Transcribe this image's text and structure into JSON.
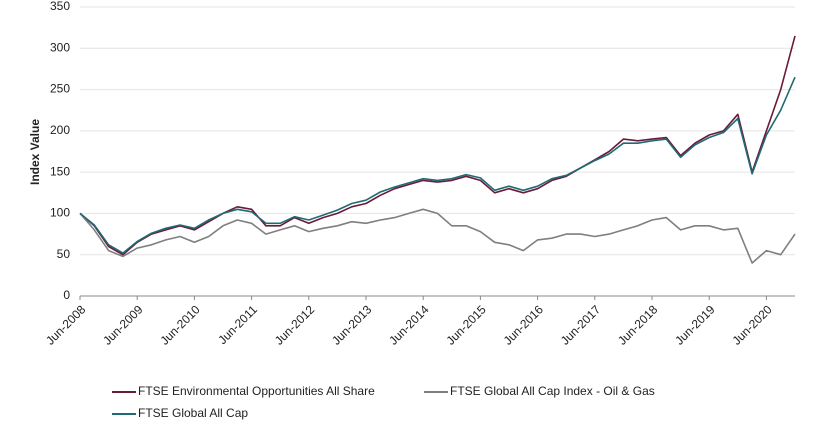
{
  "chart_data": {
    "type": "line",
    "y_label": "Index Value",
    "categories": [
      "Jun-2008",
      null,
      null,
      null,
      "Jun-2009",
      null,
      null,
      null,
      "Jun-2010",
      null,
      null,
      null,
      "Jun-2011",
      null,
      null,
      null,
      "Jun-2012",
      null,
      null,
      null,
      "Jun-2013",
      null,
      null,
      null,
      "Jun-2014",
      null,
      null,
      null,
      "Jun-2015",
      null,
      null,
      null,
      "Jun-2016",
      null,
      null,
      null,
      "Jun-2017",
      null,
      null,
      null,
      "Jun-2018",
      null,
      null,
      null,
      "Jun-2019",
      null,
      null,
      null,
      "Jun-2020",
      null,
      null
    ],
    "series": [
      {
        "name": "FTSE Environmental Opportunities All Share",
        "color": "#6b1a3a",
        "values": [
          100,
          85,
          60,
          50,
          65,
          75,
          80,
          85,
          80,
          90,
          100,
          108,
          105,
          85,
          85,
          95,
          88,
          95,
          100,
          108,
          112,
          122,
          130,
          135,
          140,
          138,
          140,
          145,
          140,
          125,
          130,
          125,
          130,
          140,
          145,
          155,
          165,
          175,
          190,
          188,
          190,
          192,
          170,
          185,
          195,
          200,
          220,
          150,
          200,
          250,
          315
        ]
      },
      {
        "name": "FTSE Global All Cap Index - Oil & Gas",
        "color": "#7f7f7f",
        "values": [
          100,
          80,
          55,
          48,
          58,
          62,
          68,
          72,
          65,
          72,
          85,
          92,
          88,
          75,
          80,
          85,
          78,
          82,
          85,
          90,
          88,
          92,
          95,
          100,
          105,
          100,
          85,
          85,
          78,
          65,
          62,
          55,
          68,
          70,
          75,
          75,
          72,
          75,
          80,
          85,
          92,
          95,
          80,
          85,
          85,
          80,
          82,
          40,
          55,
          50,
          75
        ]
      },
      {
        "name": "FTSE Global All Cap",
        "color": "#1f6b75",
        "values": [
          100,
          86,
          62,
          52,
          66,
          76,
          82,
          86,
          82,
          92,
          100,
          105,
          102,
          88,
          88,
          96,
          92,
          98,
          104,
          112,
          116,
          126,
          132,
          137,
          142,
          140,
          142,
          147,
          143,
          128,
          133,
          128,
          133,
          142,
          146,
          155,
          164,
          172,
          185,
          185,
          188,
          190,
          168,
          183,
          192,
          198,
          215,
          148,
          195,
          225,
          265
        ]
      }
    ],
    "ylim": [
      0,
      350
    ],
    "yticks": [
      0,
      50,
      100,
      150,
      200,
      250,
      300,
      350
    ],
    "grid": true
  }
}
